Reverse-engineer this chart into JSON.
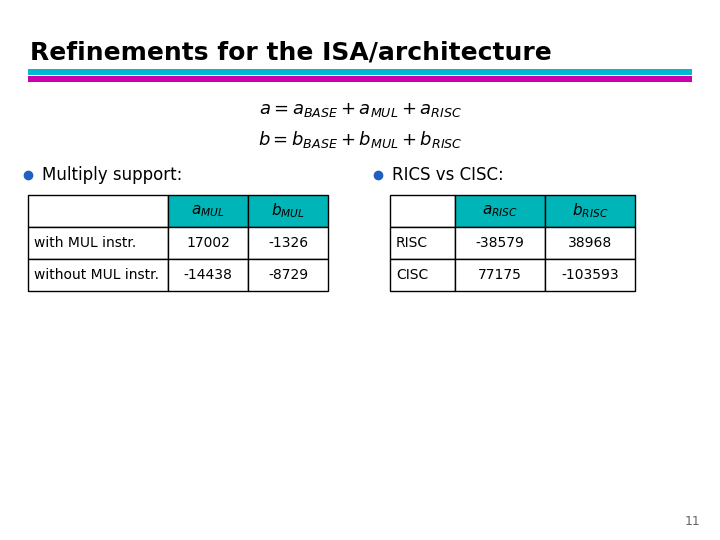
{
  "title": "Refinements for the ISA/architecture",
  "title_fontsize": 18,
  "background_color": "#ffffff",
  "stripe1_color": "#00b8d4",
  "stripe2_color": "#cc00aa",
  "formula1": "$a = a_{BASE} + a_{MUL} + a_{RISC}$",
  "formula2": "$b = b_{BASE} + b_{MUL} + b_{RISC}$",
  "bullet1": "Multiply support:",
  "bullet2": "RICS vs CISC:",
  "table1_header": [
    "",
    "$a_{MUL}$",
    "$b_{MUL}$"
  ],
  "table1_rows": [
    [
      "with MUL instr.",
      "17002",
      "-1326"
    ],
    [
      "without MUL instr.",
      "-14438",
      "-8729"
    ]
  ],
  "table2_header": [
    "",
    "$a_{RISC}$",
    "$b_{RISC}$"
  ],
  "table2_rows": [
    [
      "RISC",
      "-38579",
      "38968"
    ],
    [
      "CISC",
      "77175",
      "-103593"
    ]
  ],
  "header_bg": "#00b5b8",
  "page_number": "11",
  "font_color": "#000000",
  "bullet_color": "#2060c0"
}
